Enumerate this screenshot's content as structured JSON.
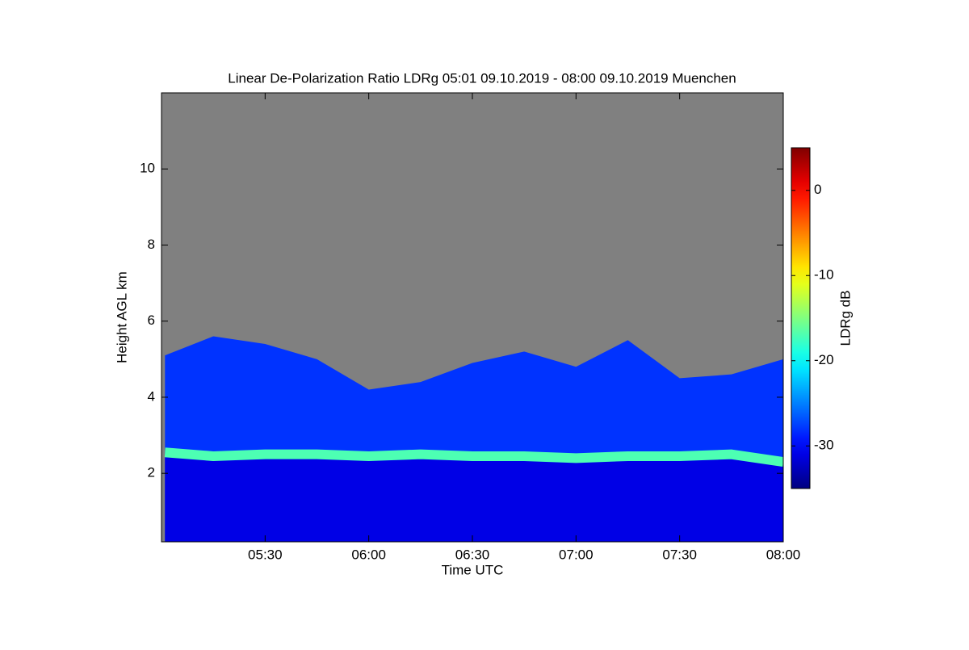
{
  "chart_data": {
    "type": "heatmap",
    "title": "Linear De-Polarization Ratio LDRg   05:01 09.10.2019 - 08:00 09.10.2019 Muenchen",
    "x_label": "Time UTC",
    "y_label": "Height AGL km",
    "colorbar_label": "LDRg dB",
    "colorscale": "jet",
    "no_data_color": "#808080",
    "xlim": [
      5.0,
      8.0
    ],
    "xticks": [
      {
        "value": 5.5,
        "label": "05:30"
      },
      {
        "value": 6.0,
        "label": "06:00"
      },
      {
        "value": 6.5,
        "label": "06:30"
      },
      {
        "value": 7.0,
        "label": "07:00"
      },
      {
        "value": 7.5,
        "label": "07:30"
      },
      {
        "value": 8.0,
        "label": "08:00"
      }
    ],
    "ylim": [
      0.2,
      12.0
    ],
    "yticks": [
      2,
      4,
      6,
      8,
      10
    ],
    "clim": [
      -35,
      5
    ],
    "cticks": [
      -30,
      -20,
      -10,
      0
    ],
    "x": [
      5.0167,
      5.25,
      5.5,
      5.75,
      6.0,
      6.25,
      6.5,
      6.75,
      7.0,
      7.25,
      7.5,
      7.75,
      8.0
    ],
    "signal_top": [
      5.1,
      5.6,
      5.4,
      5.0,
      4.2,
      4.4,
      4.9,
      5.2,
      4.8,
      5.5,
      4.5,
      4.6,
      5.0
    ],
    "layer_height": [
      2.55,
      2.45,
      2.5,
      2.5,
      2.45,
      2.5,
      2.45,
      2.45,
      2.4,
      2.45,
      2.45,
      2.5,
      2.3
    ],
    "cloud_ldr": -28,
    "layer_ldr": -17,
    "below_ldr": -31
  }
}
